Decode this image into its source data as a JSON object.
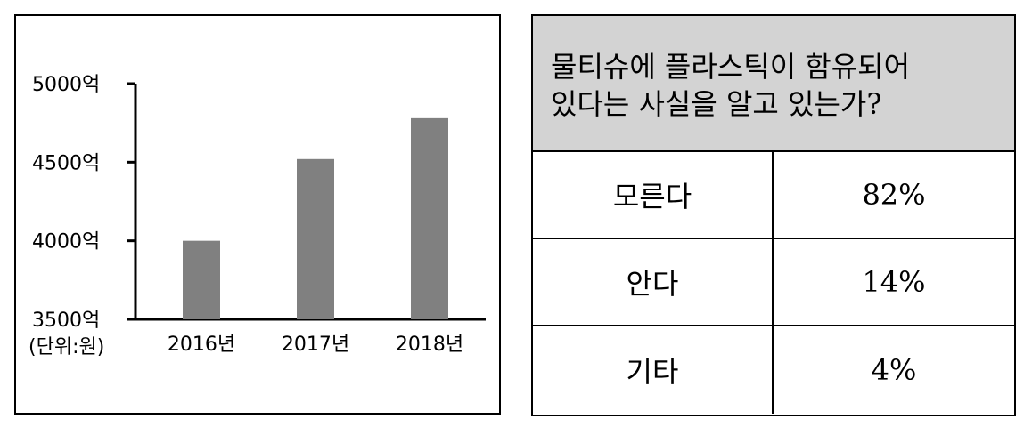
{
  "chart_data": {
    "type": "bar",
    "categories": [
      "2016년",
      "2017년",
      "2018년"
    ],
    "values": [
      4000,
      4520,
      4780
    ],
    "y_ticks": [
      3500,
      4000,
      4500,
      5000
    ],
    "y_tick_labels": [
      "3500억",
      "4000억",
      "4500억",
      "5000억"
    ],
    "ylim": [
      3500,
      5000
    ],
    "unit_note": "(단위:원)",
    "bar_color": "#808080",
    "grid": false
  },
  "table": {
    "question": "물티슈에 플라스틱이 함유되어\n있다는 사실을 알고 있는가?",
    "rows": [
      {
        "label": "모른다",
        "value": "82%"
      },
      {
        "label": "안다",
        "value": "14%"
      },
      {
        "label": "기타",
        "value": "4%"
      }
    ],
    "header_color": "#d3d3d3"
  }
}
